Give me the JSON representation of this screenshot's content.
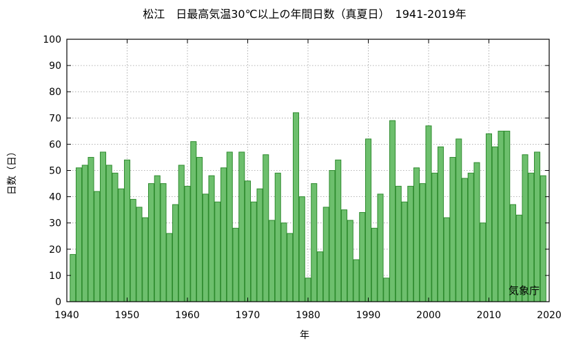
{
  "chart_data": {
    "type": "bar",
    "title": "松江　日最高気温30℃以上の年間日数（真夏日）　1941-2019年",
    "xlabel": "年",
    "ylabel": "日数（日）",
    "credit": "気象庁",
    "xlim": [
      1940,
      2020
    ],
    "ylim": [
      0,
      100
    ],
    "xticks": [
      1940,
      1950,
      1960,
      1970,
      1980,
      1990,
      2000,
      2010,
      2020
    ],
    "yticks": [
      0,
      10,
      20,
      30,
      40,
      50,
      60,
      70,
      80,
      90,
      100
    ],
    "grid": true,
    "colors": {
      "bar_fill": "#6dbf6d",
      "bar_edge": "#2e8b2e"
    },
    "x": [
      1941,
      1942,
      1943,
      1944,
      1945,
      1946,
      1947,
      1948,
      1949,
      1950,
      1951,
      1952,
      1953,
      1954,
      1955,
      1956,
      1957,
      1958,
      1959,
      1960,
      1961,
      1962,
      1963,
      1964,
      1965,
      1966,
      1967,
      1968,
      1969,
      1970,
      1971,
      1972,
      1973,
      1974,
      1975,
      1976,
      1977,
      1978,
      1979,
      1980,
      1981,
      1982,
      1983,
      1984,
      1985,
      1986,
      1987,
      1988,
      1989,
      1990,
      1991,
      1992,
      1993,
      1994,
      1995,
      1996,
      1997,
      1998,
      1999,
      2000,
      2001,
      2002,
      2003,
      2004,
      2005,
      2006,
      2007,
      2008,
      2009,
      2010,
      2011,
      2012,
      2013,
      2014,
      2015,
      2016,
      2017,
      2018,
      2019
    ],
    "values": [
      18,
      51,
      52,
      55,
      42,
      57,
      52,
      49,
      43,
      54,
      39,
      36,
      32,
      45,
      48,
      45,
      26,
      37,
      52,
      44,
      61,
      55,
      41,
      48,
      38,
      51,
      57,
      28,
      57,
      46,
      38,
      43,
      56,
      31,
      49,
      30,
      26,
      72,
      40,
      9,
      45,
      19,
      36,
      50,
      54,
      35,
      31,
      16,
      34,
      62,
      28,
      41,
      9,
      69,
      44,
      38,
      44,
      51,
      45,
      67,
      49,
      59,
      32,
      55,
      62,
      47,
      49,
      53,
      30,
      64,
      59,
      65,
      65,
      37,
      33,
      56,
      49,
      57,
      48
    ]
  }
}
